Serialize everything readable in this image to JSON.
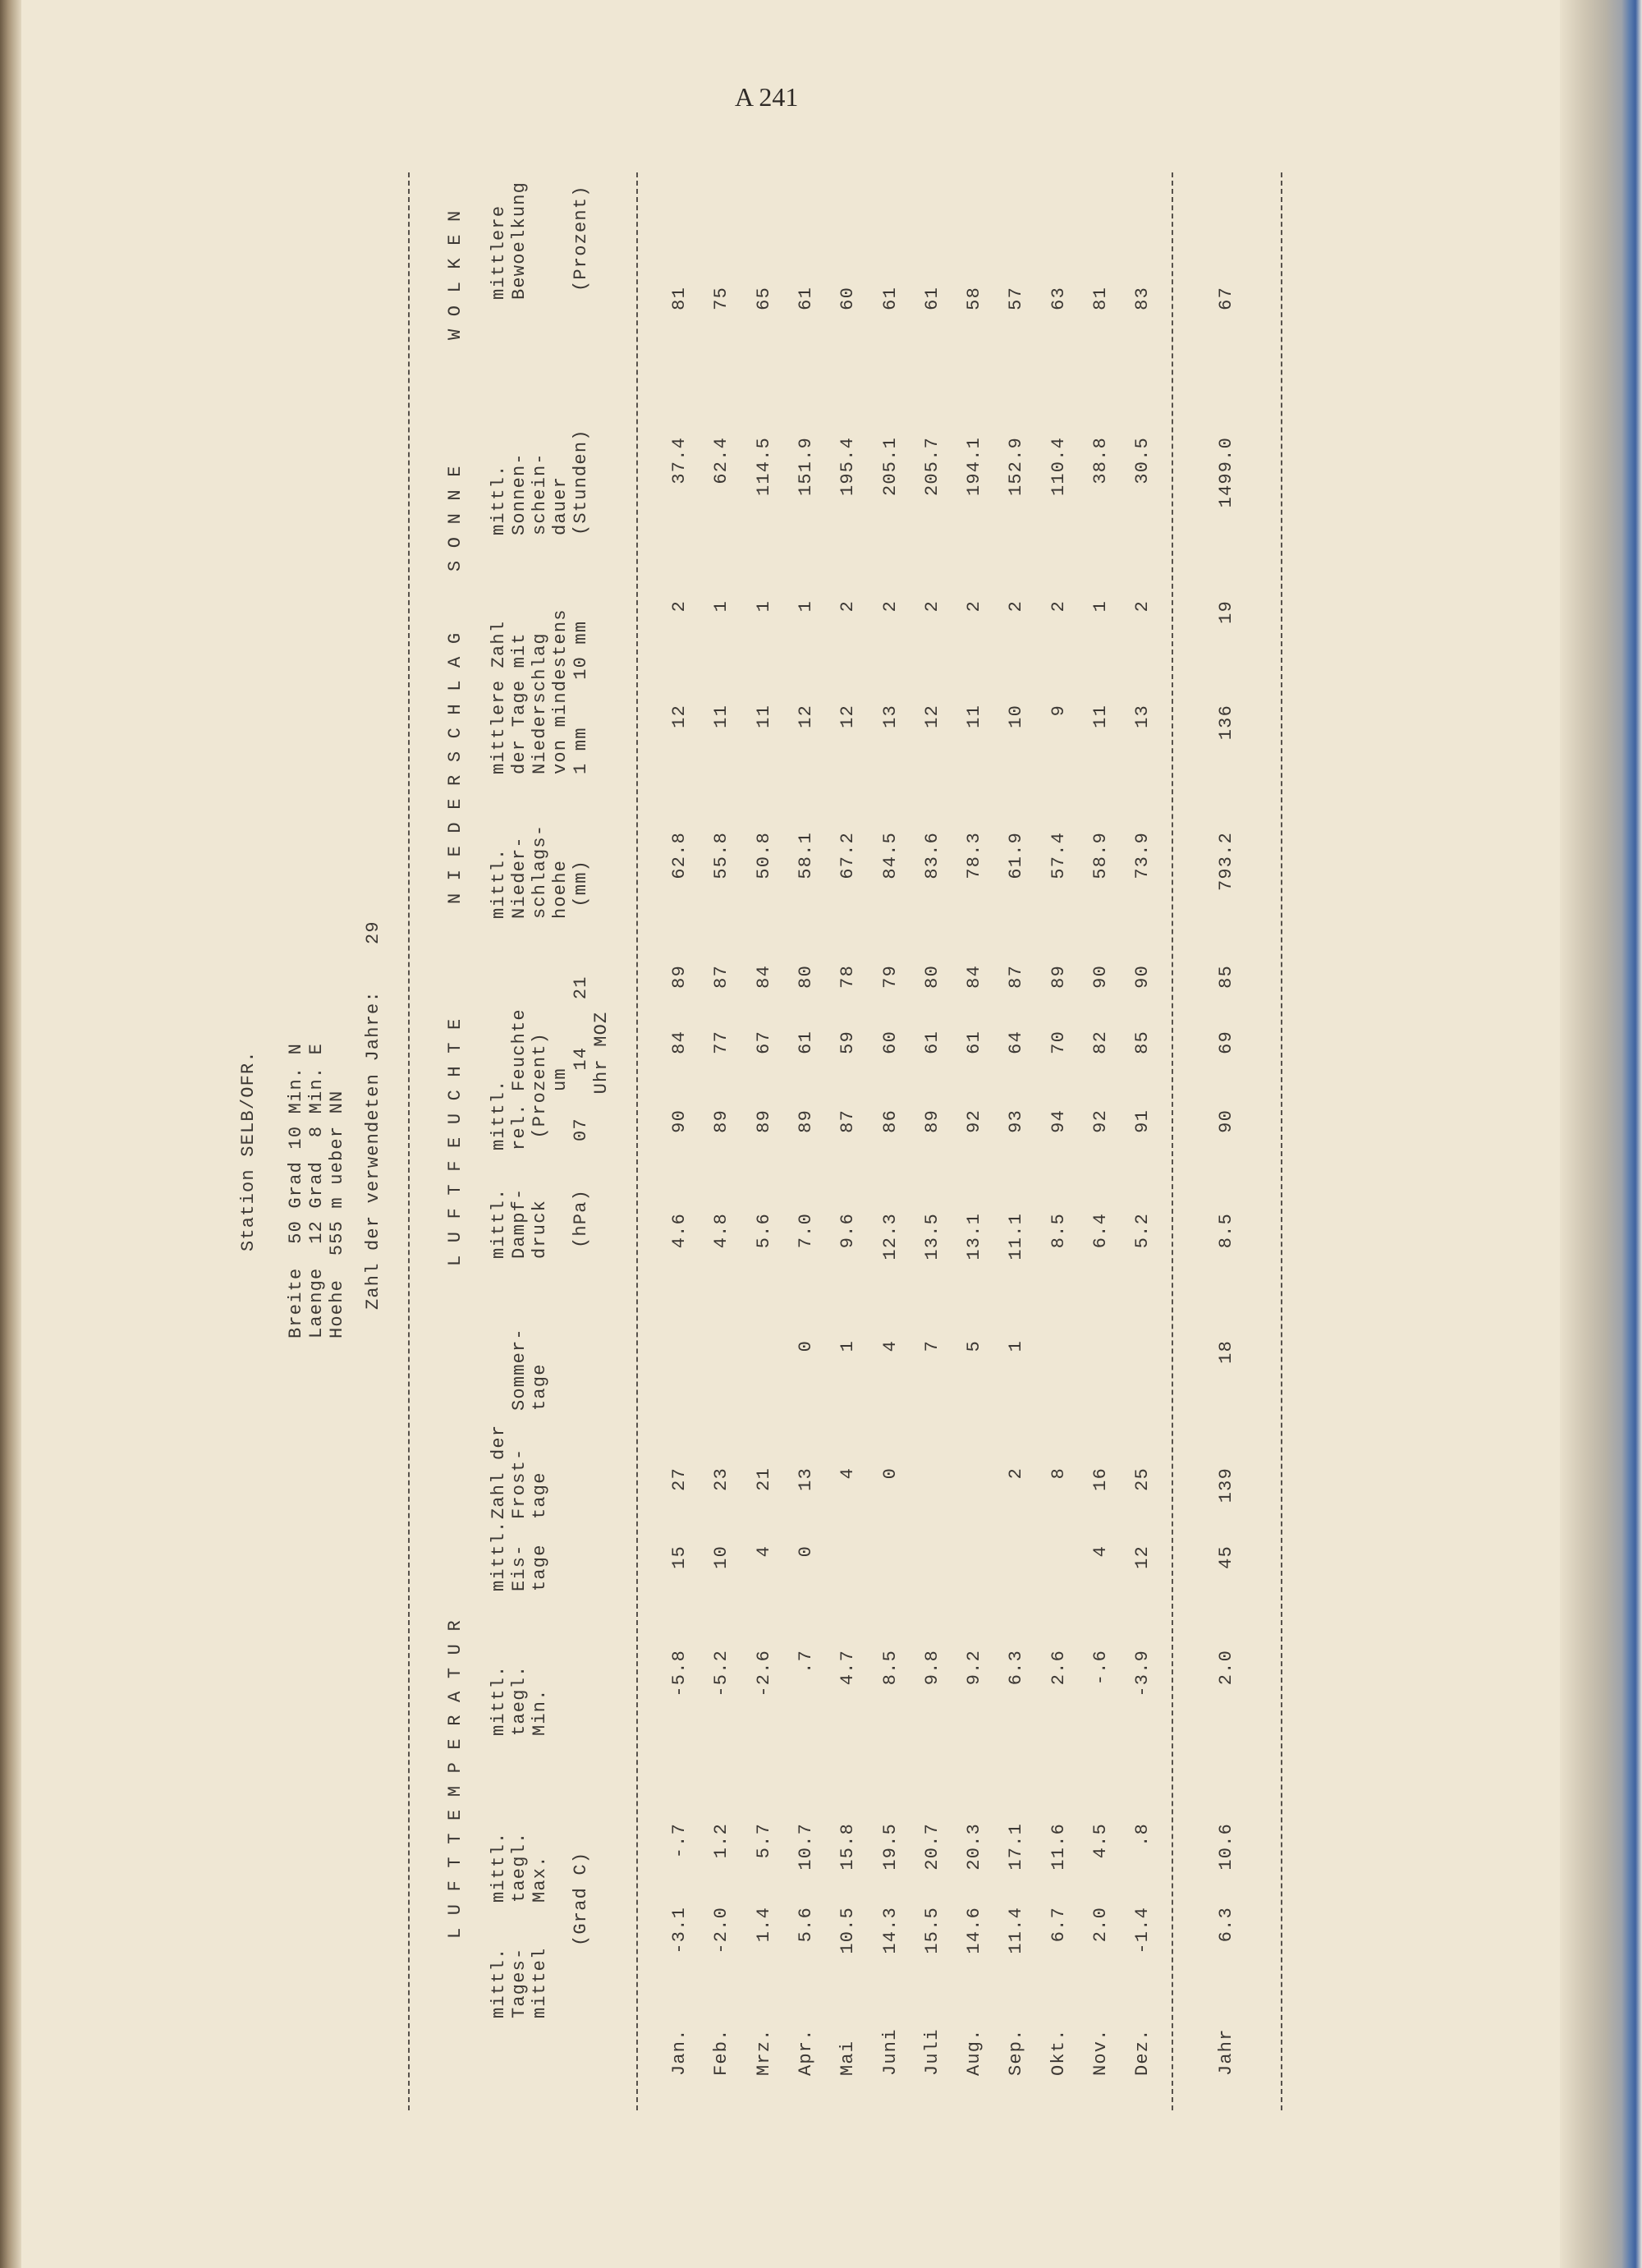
{
  "page_number": "A 241",
  "station": {
    "title": "Station SELB/OFR.",
    "coords": [
      "Breite  50 Grad 10 Min. N",
      "Laenge  12 Grad  8 Min. E",
      "Hoehe  555 m ueber NN"
    ],
    "years_label": "Zahl der verwendeten Jahre:",
    "years": "29"
  },
  "groups": [
    "L U F T T E M P E R A T U R",
    "L U F T F E U C H T E",
    "N I E D E R S C H L A G",
    "S O N N E",
    "W O L K E N"
  ],
  "column_headers": [
    "mittl.\nTages-\nmittel",
    "mittl.\ntaegl.\nMax.",
    "mittl.\ntaegl.\nMin.",
    "mittl.\nEis-\ntage",
    "Zahl der\nFrost-\ntage",
    "\nSommer-\ntage",
    "mittl.\nDampf-\ndruck",
    "mittl.\nrel. Feuchte\n (Prozent)\n     um",
    "mittl.\nNieder-\nschlags-\nhoehe\n (mm)",
    "mittlere Zahl\nder Tage mit\nNiederschlag\nvon mindestens\n1 mm    10 mm",
    "mittl.\nSonnen-\nschein-\ndauer\n(Stunden)",
    "mittlere\nBewoelkung"
  ],
  "units": {
    "temp": "(Grad C)",
    "pressure": "(hPa)",
    "hours": "07    14    21\n    Uhr MOZ",
    "cloud": "(Prozent)"
  },
  "rows": [
    {
      "month": "Jan.",
      "values": [
        "-3.1",
        "-.7",
        "-5.8",
        "15",
        "27",
        "",
        "4.6",
        "90",
        "84",
        "89",
        "62.8",
        "12",
        "2",
        "37.4",
        "81"
      ]
    },
    {
      "month": "Feb.",
      "values": [
        "-2.0",
        "1.2",
        "-5.2",
        "10",
        "23",
        "",
        "4.8",
        "89",
        "77",
        "87",
        "55.8",
        "11",
        "1",
        "62.4",
        "75"
      ]
    },
    {
      "month": "Mrz.",
      "values": [
        "1.4",
        "5.7",
        "-2.6",
        "4",
        "21",
        "",
        "5.6",
        "89",
        "67",
        "84",
        "50.8",
        "11",
        "1",
        "114.5",
        "65"
      ]
    },
    {
      "month": "Apr.",
      "values": [
        "5.6",
        "10.7",
        ".7",
        "0",
        "13",
        "0",
        "7.0",
        "89",
        "61",
        "80",
        "58.1",
        "12",
        "1",
        "151.9",
        "61"
      ]
    },
    {
      "month": "Mai",
      "values": [
        "10.5",
        "15.8",
        "4.7",
        "",
        "4",
        "1",
        "9.6",
        "87",
        "59",
        "78",
        "67.2",
        "12",
        "2",
        "195.4",
        "60"
      ]
    },
    {
      "month": "Juni",
      "values": [
        "14.3",
        "19.5",
        "8.5",
        "",
        "0",
        "4",
        "12.3",
        "86",
        "60",
        "79",
        "84.5",
        "13",
        "2",
        "205.1",
        "61"
      ]
    },
    {
      "month": "Juli",
      "values": [
        "15.5",
        "20.7",
        "9.8",
        "",
        "",
        "7",
        "13.5",
        "89",
        "61",
        "80",
        "83.6",
        "12",
        "2",
        "205.7",
        "61"
      ]
    },
    {
      "month": "Aug.",
      "values": [
        "14.6",
        "20.3",
        "9.2",
        "",
        "",
        "5",
        "13.1",
        "92",
        "61",
        "84",
        "78.3",
        "11",
        "2",
        "194.1",
        "58"
      ]
    },
    {
      "month": "Sep.",
      "values": [
        "11.4",
        "17.1",
        "6.3",
        "",
        "2",
        "1",
        "11.1",
        "93",
        "64",
        "87",
        "61.9",
        "10",
        "2",
        "152.9",
        "57"
      ]
    },
    {
      "month": "Okt.",
      "values": [
        "6.7",
        "11.6",
        "2.6",
        "",
        "8",
        "",
        "8.5",
        "94",
        "70",
        "89",
        "57.4",
        "9",
        "2",
        "110.4",
        "63"
      ]
    },
    {
      "month": "Nov.",
      "values": [
        "2.0",
        "4.5",
        "-.6",
        "4",
        "16",
        "",
        "6.4",
        "92",
        "82",
        "90",
        "58.9",
        "11",
        "1",
        "38.8",
        "81"
      ]
    },
    {
      "month": "Dez.",
      "values": [
        "-1.4",
        ".8",
        "-3.9",
        "12",
        "25",
        "",
        "5.2",
        "91",
        "85",
        "90",
        "73.9",
        "13",
        "2",
        "30.5",
        "83"
      ]
    }
  ],
  "total": {
    "month": "Jahr",
    "values": [
      "6.3",
      "10.6",
      "2.0",
      "45",
      "139",
      "18",
      "8.5",
      "90",
      "69",
      "85",
      "793.2",
      "136",
      "19",
      "1499.0",
      "67"
    ]
  }
}
